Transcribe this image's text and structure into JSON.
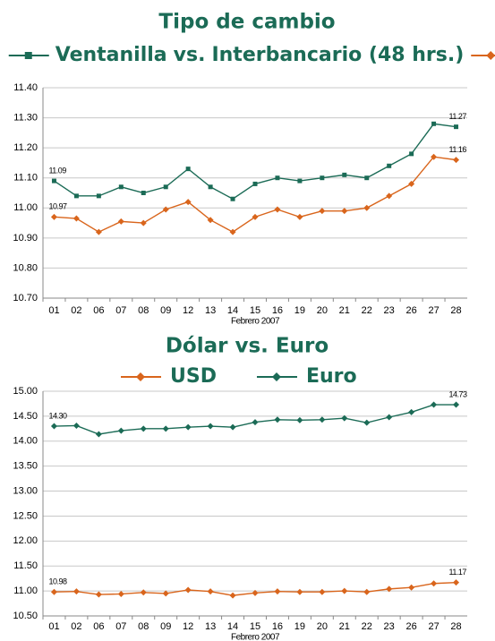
{
  "chart_data": [
    {
      "type": "line",
      "title": "Tipo de cambio",
      "legend_joiner": "vs.",
      "xlabel": "Febrero 2007",
      "categories": [
        "01",
        "02",
        "06",
        "07",
        "08",
        "09",
        "12",
        "13",
        "14",
        "15",
        "16",
        "19",
        "20",
        "21",
        "22",
        "23",
        "26",
        "27",
        "28"
      ],
      "ylim": [
        10.7,
        11.4
      ],
      "yticks": [
        {
          "value": 10.7,
          "label": "10.70"
        },
        {
          "value": 10.8,
          "label": "10.80"
        },
        {
          "value": 10.9,
          "label": "10.90"
        },
        {
          "value": 11.0,
          "label": "11.00"
        },
        {
          "value": 11.1,
          "label": "11.10"
        },
        {
          "value": 11.2,
          "label": "11.20"
        },
        {
          "value": 11.3,
          "label": "11.30"
        },
        {
          "value": 11.4,
          "label": "11.40"
        }
      ],
      "grid": true,
      "series": [
        {
          "name": "Ventanilla",
          "color": "#1b6b56",
          "marker": "square",
          "values": [
            11.09,
            11.04,
            11.04,
            11.07,
            11.05,
            11.07,
            11.13,
            11.07,
            11.03,
            11.08,
            11.1,
            11.09,
            11.1,
            11.11,
            11.1,
            11.14,
            11.18,
            11.28,
            11.27
          ],
          "value_labels": [
            "11.09",
            null,
            null,
            null,
            null,
            null,
            null,
            null,
            null,
            null,
            null,
            null,
            null,
            null,
            null,
            null,
            null,
            null,
            "11.27"
          ]
        },
        {
          "name": "Interbancario (48 hrs.)",
          "color": "#d9651c",
          "marker": "diamond",
          "values": [
            10.97,
            10.965,
            10.92,
            10.955,
            10.95,
            10.995,
            11.02,
            10.96,
            10.92,
            10.97,
            10.995,
            10.97,
            10.99,
            10.99,
            11.0,
            11.04,
            11.08,
            11.17,
            11.16
          ],
          "value_labels": [
            "10.97",
            null,
            null,
            null,
            null,
            null,
            null,
            null,
            null,
            null,
            null,
            null,
            null,
            null,
            null,
            null,
            null,
            null,
            "11.16"
          ]
        }
      ]
    },
    {
      "type": "line",
      "title": "Dólar vs. Euro",
      "xlabel": "Febrero 2007",
      "categories": [
        "01",
        "02",
        "06",
        "07",
        "08",
        "09",
        "12",
        "13",
        "14",
        "15",
        "16",
        "19",
        "20",
        "21",
        "22",
        "23",
        "26",
        "27",
        "28"
      ],
      "ylim": [
        10.5,
        15.0
      ],
      "yticks": [
        {
          "value": 10.5,
          "label": "10.50"
        },
        {
          "value": 11.0,
          "label": "11.00"
        },
        {
          "value": 11.5,
          "label": "11.50"
        },
        {
          "value": 12.0,
          "label": "12.00"
        },
        {
          "value": 12.5,
          "label": "12.50"
        },
        {
          "value": 13.0,
          "label": "13.00"
        },
        {
          "value": 13.5,
          "label": "13.50"
        },
        {
          "value": 14.0,
          "label": "14.00"
        },
        {
          "value": 14.5,
          "label": "14.50"
        },
        {
          "value": 15.0,
          "label": "15.00"
        }
      ],
      "grid": true,
      "series": [
        {
          "name": "USD",
          "color": "#d9651c",
          "marker": "diamond",
          "values": [
            10.98,
            10.99,
            10.93,
            10.94,
            10.97,
            10.95,
            11.02,
            10.99,
            10.91,
            10.96,
            10.99,
            10.98,
            10.98,
            11.0,
            10.98,
            11.04,
            11.07,
            11.15,
            11.17
          ],
          "value_labels": [
            "10.98",
            null,
            null,
            null,
            null,
            null,
            null,
            null,
            null,
            null,
            null,
            null,
            null,
            null,
            null,
            null,
            null,
            null,
            "11.17"
          ]
        },
        {
          "name": "Euro",
          "color": "#1b6b56",
          "marker": "diamond",
          "values": [
            14.3,
            14.31,
            14.14,
            14.21,
            14.25,
            14.25,
            14.28,
            14.3,
            14.28,
            14.38,
            14.43,
            14.42,
            14.43,
            14.46,
            14.37,
            14.48,
            14.58,
            14.73,
            14.73
          ],
          "value_labels": [
            "14.30",
            null,
            null,
            null,
            null,
            null,
            null,
            null,
            null,
            null,
            null,
            null,
            null,
            null,
            null,
            null,
            null,
            null,
            "14.73"
          ]
        }
      ]
    }
  ]
}
